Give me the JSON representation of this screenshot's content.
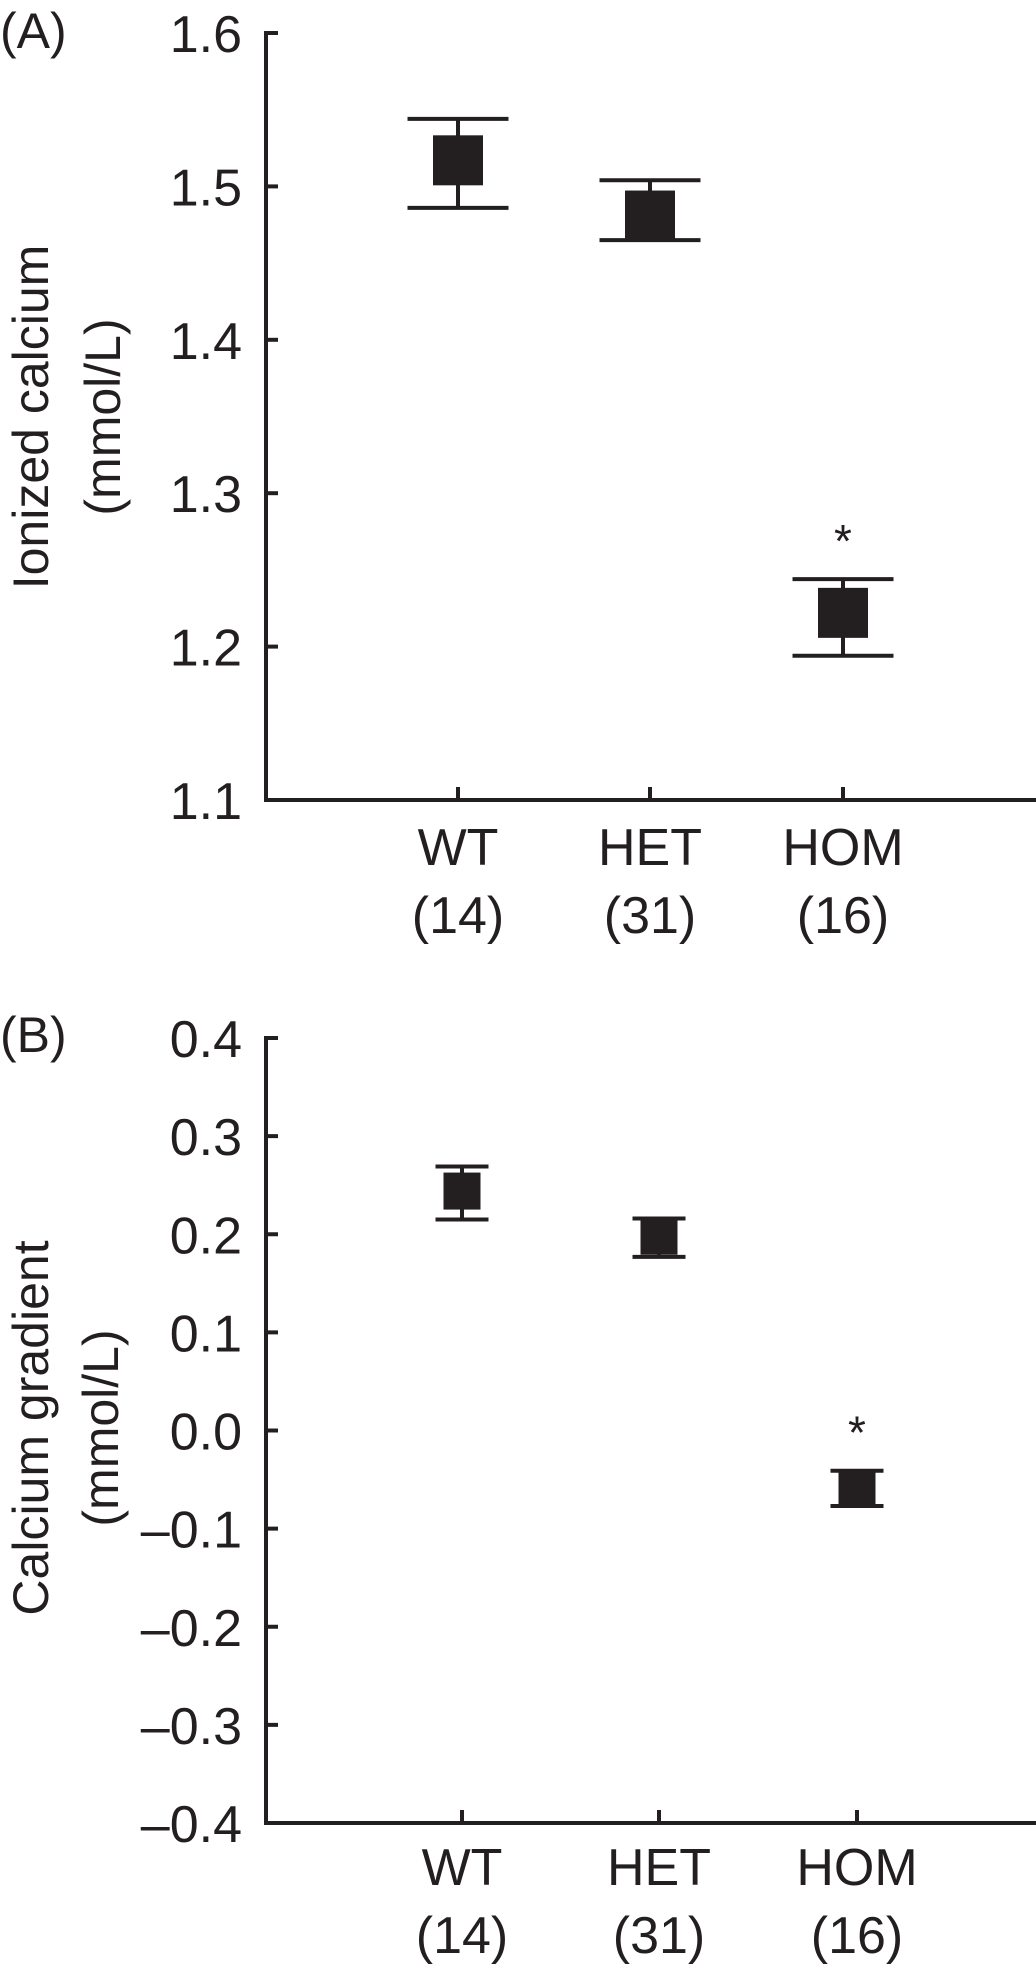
{
  "chart_data": [
    {
      "type": "scatter",
      "panel_label": "(A)",
      "ylabel_line1": "Ionized calcium",
      "ylabel_line2": "(mmol/L)",
      "xlabel": "",
      "ylim": [
        1.1,
        1.6
      ],
      "yticks": [
        "1.6",
        "1.5",
        "1.4",
        "1.3",
        "1.2",
        "1.1"
      ],
      "ytick_values": [
        1.6,
        1.5,
        1.4,
        1.3,
        1.2,
        1.1
      ],
      "categories": [
        "WT",
        "HET",
        "HOM"
      ],
      "category_n": [
        "(14)",
        "(31)",
        "(16)"
      ],
      "values": [
        1.517,
        1.481,
        1.222
      ],
      "error_upper": [
        1.544,
        1.504,
        1.244
      ],
      "error_lower": [
        1.486,
        1.465,
        1.194
      ],
      "annotations": [
        {
          "category": "HOM",
          "text": "*"
        }
      ],
      "grid": false
    },
    {
      "type": "scatter",
      "panel_label": "(B)",
      "ylabel_line1": "Calcium gradient",
      "ylabel_line2": "(mmol/L)",
      "xlabel": "",
      "ylim": [
        -0.4,
        0.4
      ],
      "yticks": [
        "0.4",
        "0.3",
        "0.2",
        "0.1",
        "0.0",
        "–0.1",
        "–0.2",
        "–0.3",
        "–0.4"
      ],
      "ytick_values": [
        0.4,
        0.3,
        0.2,
        0.1,
        0.0,
        -0.1,
        -0.2,
        -0.3,
        -0.4
      ],
      "categories": [
        "WT",
        "HET",
        "HOM"
      ],
      "category_n": [
        "(14)",
        "(31)",
        "(16)"
      ],
      "values": [
        0.244,
        0.198,
        -0.059
      ],
      "error_upper": [
        0.269,
        0.216,
        -0.041
      ],
      "error_lower": [
        0.215,
        0.177,
        -0.077
      ],
      "annotations": [
        {
          "category": "HOM",
          "text": "*"
        }
      ],
      "grid": false
    }
  ]
}
